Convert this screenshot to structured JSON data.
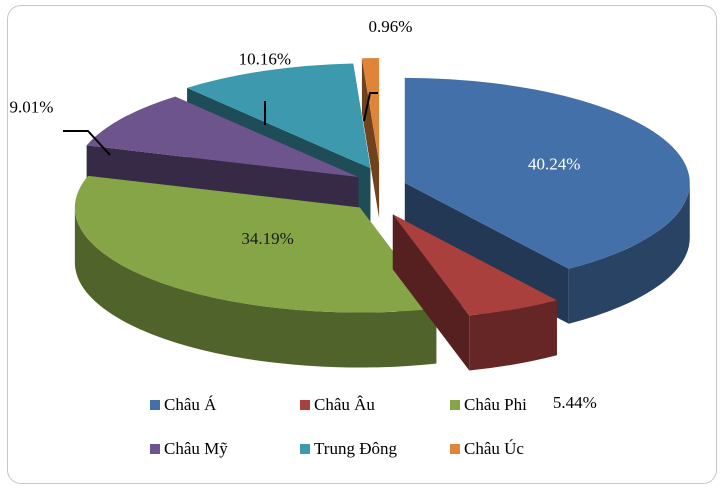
{
  "chart_data": {
    "type": "pie",
    "title": "",
    "categories": [
      "Châu Á",
      "Châu Âu",
      "Châu Phi",
      "Châu Mỹ",
      "Trung Đông",
      "Châu Úc"
    ],
    "values": [
      40.24,
      5.44,
      34.19,
      9.01,
      10.16,
      0.96
    ],
    "data_labels": [
      "40.24%",
      "5.44%",
      "34.19%",
      "9.01%",
      "10.16%",
      "0.96%"
    ],
    "colors": [
      "#4470A9",
      "#A9403E",
      "#86A547",
      "#6D548C",
      "#3D9AAE",
      "#E0843A"
    ],
    "style": "3d-exploded",
    "legend_position": "bottom"
  }
}
